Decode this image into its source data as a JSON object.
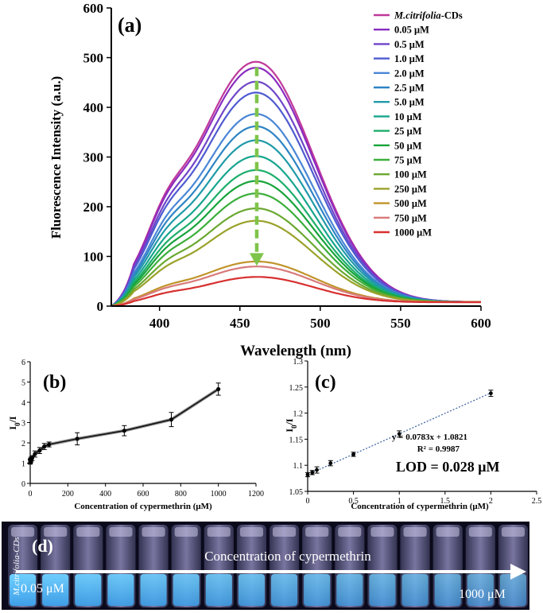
{
  "chart_data": [
    {
      "panel": "(a)",
      "type": "line",
      "xlabel": "Wavelength (nm)",
      "ylabel": "Fluorescence Intensity (a.u.)",
      "xlim": [
        370,
        600
      ],
      "ylim": [
        0,
        600
      ],
      "xticks": [
        400,
        450,
        500,
        550,
        600
      ],
      "yticks": [
        0,
        100,
        200,
        300,
        400,
        500,
        600
      ],
      "peak_wavelength": 460,
      "grid": false,
      "legend_position": "top-right",
      "annotation": "downward dashed arrow at peak indicating quenching",
      "series": [
        {
          "name": "M.citrifolia-CDs",
          "peak": 490,
          "color": "#c0389a"
        },
        {
          "name": "0.05 μM",
          "peak": 478,
          "color": "#8a2cc0"
        },
        {
          "name": "0.5 μM",
          "peak": 450,
          "color": "#6f45c8"
        },
        {
          "name": "1.0 μM",
          "peak": 428,
          "color": "#4f5bd0"
        },
        {
          "name": "2.0 μM",
          "peak": 385,
          "color": "#4a86d6"
        },
        {
          "name": "2.5 μM",
          "peak": 360,
          "color": "#2e84c4"
        },
        {
          "name": "5.0 μM",
          "peak": 332,
          "color": "#1f9aa8"
        },
        {
          "name": "10 μM",
          "peak": 300,
          "color": "#17a58e"
        },
        {
          "name": "25 μM",
          "peak": 272,
          "color": "#1cae6a"
        },
        {
          "name": "50 μM",
          "peak": 250,
          "color": "#17a33a"
        },
        {
          "name": "75 μM",
          "peak": 225,
          "color": "#3bae3a"
        },
        {
          "name": "100 μM",
          "peak": 195,
          "color": "#6aa830"
        },
        {
          "name": "250 μM",
          "peak": 170,
          "color": "#9aa22a"
        },
        {
          "name": "500 μM",
          "peak": 88,
          "color": "#c0942a"
        },
        {
          "name": "750 μM",
          "peak": 78,
          "color": "#d87a7a"
        },
        {
          "name": "1000 μM",
          "peak": 57,
          "color": "#d83030"
        }
      ]
    },
    {
      "panel": "(b)",
      "type": "line",
      "xlabel": "Concentration of cypermethrin (μM)",
      "ylabel": "I0/I",
      "ylabel_main": "I",
      "ylabel_sub": "0",
      "ylabel_tail": "/I",
      "xlim": [
        0,
        1200
      ],
      "ylim": [
        0,
        6
      ],
      "xticks": [
        0,
        200,
        400,
        600,
        800,
        1000,
        1200
      ],
      "yticks": [
        0,
        1,
        2,
        3,
        4,
        5,
        6
      ],
      "x": [
        0.05,
        0.5,
        1,
        2,
        2.5,
        5,
        10,
        25,
        50,
        75,
        100,
        250,
        500,
        750,
        1000
      ],
      "y": [
        1.05,
        1.08,
        1.1,
        1.12,
        1.15,
        1.2,
        1.25,
        1.45,
        1.62,
        1.82,
        1.92,
        2.2,
        2.6,
        3.15,
        4.65
      ],
      "errors": [
        0.1,
        0.1,
        0.1,
        0.1,
        0.1,
        0.1,
        0.12,
        0.15,
        0.15,
        0.15,
        0.12,
        0.3,
        0.25,
        0.35,
        0.3
      ]
    },
    {
      "panel": "(c)",
      "type": "scatter",
      "xlabel": "Concentration of cypermethrin (μM)",
      "ylabel": "I0/I",
      "ylabel_main": "I",
      "ylabel_sub": "0",
      "ylabel_tail": "/I",
      "xlim": [
        0,
        2.5
      ],
      "ylim": [
        1.05,
        1.3
      ],
      "xticks": [
        0,
        0.5,
        1,
        1.5,
        2,
        2.5
      ],
      "yticks": [
        1.05,
        1.1,
        1.15,
        1.2,
        1.25,
        1.3
      ],
      "xtick_labels": [
        "0",
        "0.5",
        "1",
        "1.5",
        "2",
        "2.5"
      ],
      "ytick_labels": [
        "1.05",
        "1.1",
        "1.15",
        "1.2",
        "1.25",
        "1.3"
      ],
      "x": [
        0,
        0.05,
        0.1,
        0.25,
        0.5,
        1.0,
        2.0
      ],
      "y": [
        1.082,
        1.086,
        1.091,
        1.104,
        1.121,
        1.16,
        1.238
      ],
      "errors": [
        0.004,
        0.004,
        0.006,
        0.005,
        0.004,
        0.006,
        0.006
      ],
      "fit_slope": 0.0783,
      "fit_intercept": 1.0821,
      "equation": "y = 0.0783x + 1.0821",
      "r2": "R² = 0.9987",
      "lod": "LOD = 0.028 μM"
    }
  ],
  "photo": {
    "panel": "(d)",
    "vial_count": 16,
    "first_label": "M.citrifolia-CDs",
    "title": "Concentration of cypermethrin",
    "start_label": "0.05 μM",
    "end_label": "1000 μM"
  }
}
